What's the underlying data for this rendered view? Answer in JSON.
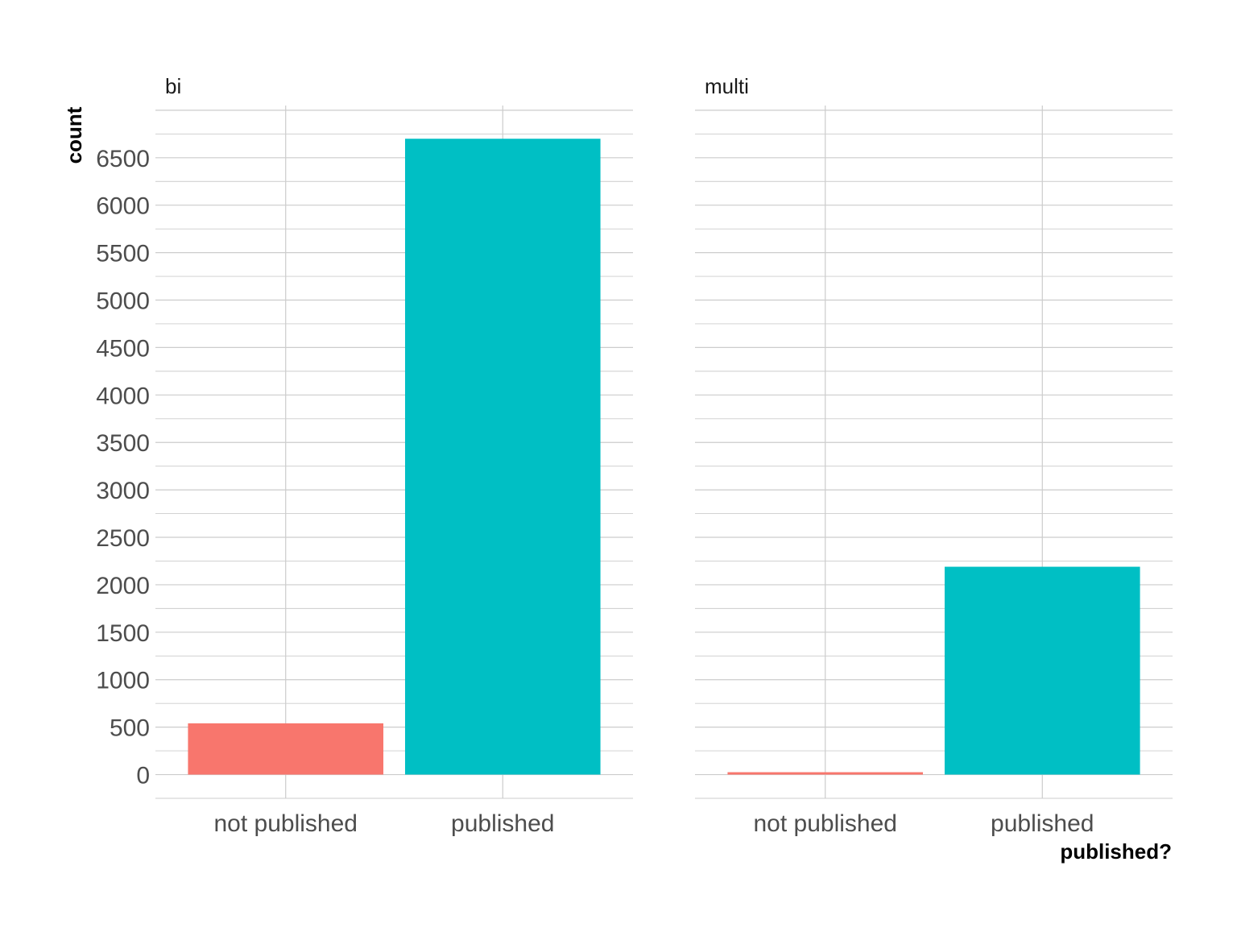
{
  "chart_data": {
    "type": "bar",
    "facets": [
      "bi",
      "multi"
    ],
    "categories": [
      "not published",
      "published"
    ],
    "panels": [
      {
        "facet": "bi",
        "values": [
          540,
          6700
        ]
      },
      {
        "facet": "multi",
        "values": [
          25,
          2190
        ]
      }
    ],
    "colors": {
      "not published": "#f8766d",
      "published": "#00bfc4"
    },
    "xlabel": "published?",
    "ylabel": "count",
    "ylim": [
      -250,
      7050
    ],
    "yticks": [
      0,
      500,
      1000,
      1500,
      2000,
      2500,
      3000,
      3500,
      4000,
      4500,
      5000,
      5500,
      6000,
      6500
    ],
    "grid": true,
    "legend": "none"
  }
}
